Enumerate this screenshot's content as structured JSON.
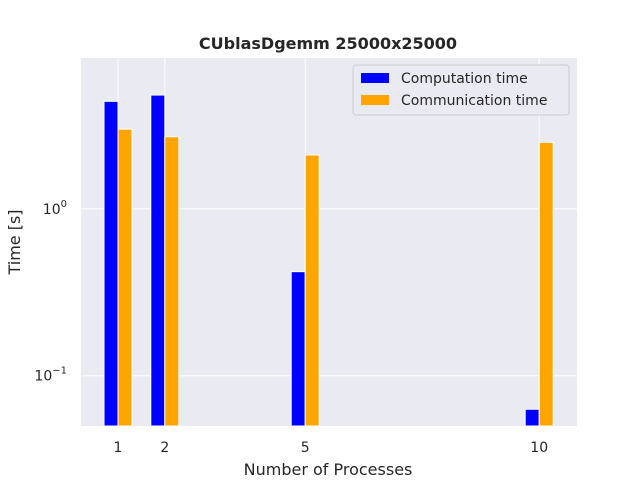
{
  "chart_data": {
    "type": "bar",
    "title": "CUblasDgemm 25000x25000",
    "xlabel": "Number of Processes",
    "ylabel": "Time [s]",
    "x": [
      1,
      2,
      5,
      10
    ],
    "x_tick_labels": [
      "1",
      "2",
      "5",
      "10"
    ],
    "yscale": "log",
    "ylim": [
      0.05,
      8.0
    ],
    "y_ticks": [
      {
        "value": 0.1,
        "base": "10",
        "exp": "−1"
      },
      {
        "value": 1,
        "base": "10",
        "exp": "0"
      }
    ],
    "grid": true,
    "legend_position": "top-right",
    "series": [
      {
        "name": "Computation time",
        "color": "#0000ff",
        "values": [
          4.4,
          4.8,
          0.42,
          0.063
        ]
      },
      {
        "name": "Communication time",
        "color": "#ffa500",
        "values": [
          3.0,
          2.7,
          2.1,
          2.5
        ]
      }
    ]
  }
}
